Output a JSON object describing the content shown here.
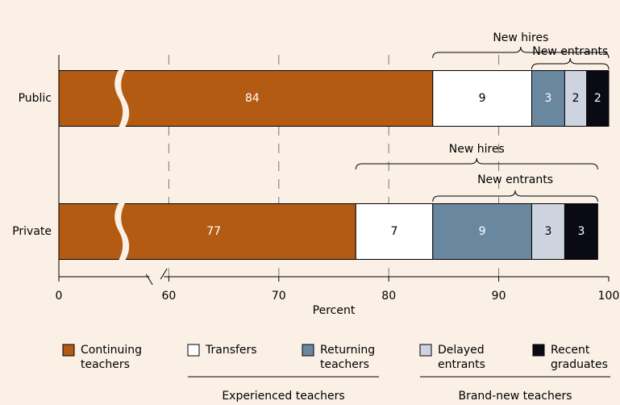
{
  "chart_data": {
    "type": "stacked_bar_horizontal",
    "categories": [
      "Public",
      "Private"
    ],
    "series": [
      {
        "name": "Continuing teachers",
        "color": "#b35a13",
        "label_color": "#ffffff",
        "values": [
          84,
          77
        ]
      },
      {
        "name": "Transfers",
        "color": "#ffffff",
        "label_color": "#000000",
        "values": [
          9,
          7
        ]
      },
      {
        "name": "Returning teachers",
        "color": "#6a87a0",
        "label_color": "#ffffff",
        "values": [
          3,
          9
        ]
      },
      {
        "name": "Delayed entrants",
        "color": "#cdd3df",
        "label_color": "#000000",
        "values": [
          2,
          3
        ]
      },
      {
        "name": "Recent graduates",
        "color": "#0a0a14",
        "label_color": "#ffffff",
        "values": [
          2,
          3
        ]
      }
    ],
    "xlabel": "Percent",
    "xlim": [
      0,
      100
    ],
    "xticks": [
      0,
      60,
      70,
      80,
      90,
      100
    ],
    "axis_break": true,
    "grid": true,
    "brackets": [
      [
        "New hires",
        "New entrants"
      ],
      [
        "New hires",
        "New entrants"
      ]
    ],
    "legend_groups": [
      "Experienced teachers",
      "Brand-new teachers"
    ],
    "legend": "bottom"
  }
}
